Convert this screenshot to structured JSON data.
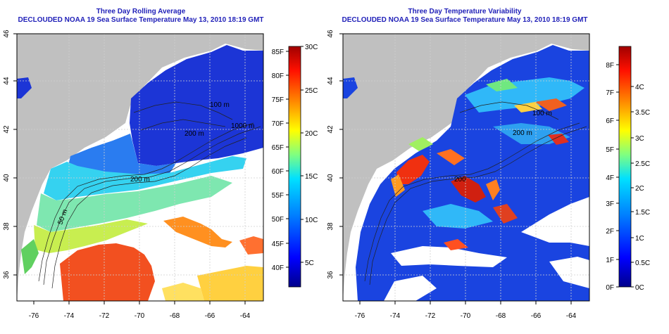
{
  "panels": [
    {
      "title_line1": "Three Day Rolling Average",
      "title_line2": "DECLOUDED NOAA 19 Sea Surface Temperature May 13, 2010 18:19 GMT",
      "x_ticks": [
        "-76",
        "-74",
        "-72",
        "-70",
        "-68",
        "-66",
        "-64"
      ],
      "y_ticks": [
        "36",
        "38",
        "40",
        "42",
        "44",
        "46"
      ],
      "contour_labels": [
        "50 m",
        "200 m",
        "100 m",
        "200 m",
        "1000 m"
      ],
      "colorbar": {
        "left_labels": [
          "85F",
          "80F",
          "75F",
          "70F",
          "65F",
          "60F",
          "55F",
          "50F",
          "45F",
          "40F"
        ],
        "right_labels": [
          "30C",
          "25C",
          "20C",
          "15C",
          "10C",
          "5C"
        ],
        "colors": [
          "#00008b",
          "#0000ff",
          "#0070ff",
          "#00d0ff",
          "#80ff80",
          "#ffff00",
          "#ff9000",
          "#ff2000",
          "#b00000"
        ]
      }
    },
    {
      "title_line1": "Three Day Temperature Variability",
      "title_line2": "DECLOUDED NOAA 19 Sea Surface Temperature May 13, 2010 18:19 GMT",
      "x_ticks": [
        "-76",
        "-74",
        "-72",
        "-70",
        "-68",
        "-66",
        "-64"
      ],
      "y_ticks": [
        "36",
        "38",
        "40",
        "42",
        "44",
        "46"
      ],
      "contour_labels": [
        "200",
        "100 m",
        "200 m"
      ],
      "colorbar": {
        "left_labels": [
          "8F",
          "7F",
          "6F",
          "5F",
          "4F",
          "3F",
          "2F",
          "1F",
          "0F"
        ],
        "right_labels": [
          "4C",
          "3.5C",
          "3C",
          "2.5C",
          "2C",
          "1.5C",
          "1C",
          "0.5C",
          "0C"
        ],
        "colors": [
          "#00008b",
          "#0000ff",
          "#0070ff",
          "#00d0ff",
          "#80ff80",
          "#ffff00",
          "#ff9000",
          "#ff2000",
          "#b00000"
        ]
      }
    }
  ],
  "colors": {
    "land": "#c0c0c0",
    "title": "#1f1fb8",
    "no_data": "#ffffff"
  }
}
